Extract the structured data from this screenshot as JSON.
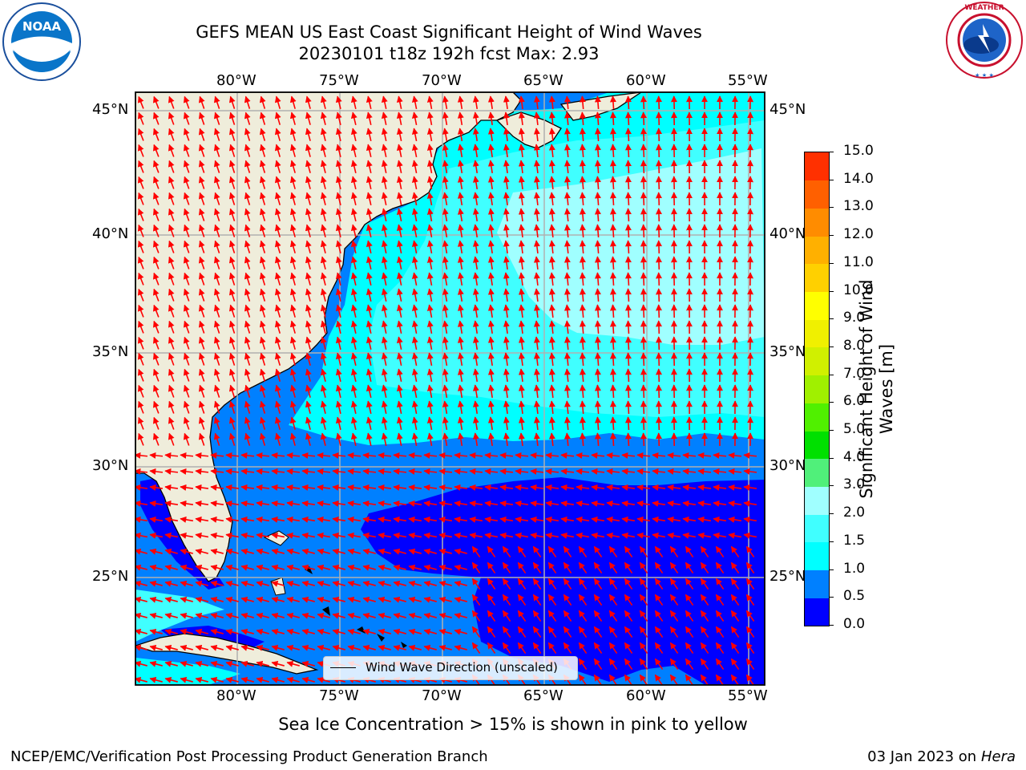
{
  "header": {
    "title_line1": "GEFS MEAN US East Coast Significant Height of Wind Waves",
    "title_line2": "20230101 t18z 192h fcst   Max: 2.93",
    "left_logo": {
      "name": "noaa-logo",
      "text": "NOAA"
    },
    "right_logo": {
      "name": "national-weather-service-logo",
      "text": "NATIONAL WEATHER SERVICE"
    }
  },
  "map": {
    "lon_ticks": [
      "80°W",
      "75°W",
      "70°W",
      "65°W",
      "60°W",
      "55°W"
    ],
    "lat_ticks": [
      "45°N",
      "40°N",
      "35°N",
      "30°N",
      "25°N"
    ],
    "legend_label": "Wind Wave Direction (unscaled)",
    "colors": {
      "land": "#efeddb",
      "arrow": "#ff0000",
      "grid": "#b0b0b0",
      "coast": "#000000"
    }
  },
  "colorbar": {
    "label_line1": "Significant Height of Wind",
    "label_line2": "Waves [m]",
    "ticks": [
      "0.0",
      "0.5",
      "1.0",
      "1.5",
      "2.0",
      "3.0",
      "4.0",
      "5.0",
      "6.0",
      "7.0",
      "8.0",
      "9.0",
      "10.0",
      "11.0",
      "12.0",
      "13.0",
      "14.0",
      "15.0"
    ],
    "colors": [
      "#0000ff",
      "#0080ff",
      "#00ffff",
      "#40ffff",
      "#a0ffff",
      "#50f07a",
      "#00e000",
      "#50f000",
      "#a0f000",
      "#d0f000",
      "#f0f000",
      "#ffff00",
      "#ffd000",
      "#ffb000",
      "#ff8c00",
      "#ff6000",
      "#ff3000",
      "#ff0000"
    ]
  },
  "footer": {
    "note": "Sea Ice Concentration > 15% is shown in pink to yellow",
    "credit": "NCEP/EMC/Verification Post Processing Product Generation Branch",
    "date": "03 Jan 2023 on ",
    "machine": "Hera"
  }
}
